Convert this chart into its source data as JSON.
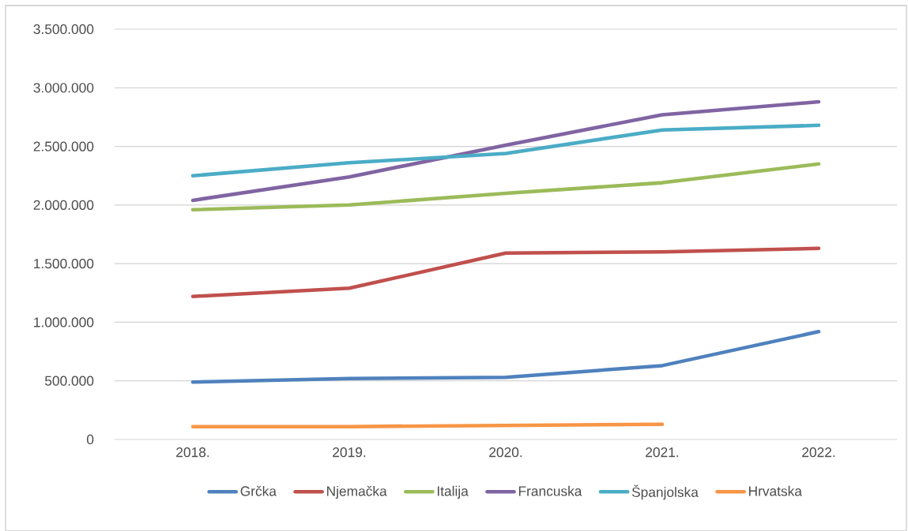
{
  "chart_data": {
    "type": "line",
    "categories": [
      "2018.",
      "2019.",
      "2020.",
      "2021.",
      "2022."
    ],
    "series": [
      {
        "name": "Grčka",
        "color": "#4f81bd",
        "values": [
          490000,
          520000,
          530000,
          630000,
          920000
        ]
      },
      {
        "name": "Njemačka",
        "color": "#c0504d",
        "values": [
          1220000,
          1290000,
          1590000,
          1600000,
          1630000
        ]
      },
      {
        "name": "Italija",
        "color": "#9bbb59",
        "values": [
          1960000,
          2000000,
          2100000,
          2190000,
          2350000
        ]
      },
      {
        "name": "Francuska",
        "color": "#8064a2",
        "values": [
          2040000,
          2240000,
          2510000,
          2770000,
          2880000
        ]
      },
      {
        "name": "Španjolska",
        "color": "#4bacc6",
        "values": [
          2250000,
          2360000,
          2440000,
          2640000,
          2680000
        ]
      },
      {
        "name": "Hrvatska",
        "color": "#f79646",
        "values": [
          110000,
          110000,
          120000,
          130000,
          null
        ]
      }
    ],
    "ylim": [
      0,
      3500000
    ],
    "yticks": [
      {
        "value": 0,
        "label": "0"
      },
      {
        "value": 500000,
        "label": "500.000"
      },
      {
        "value": 1000000,
        "label": "1.000.000"
      },
      {
        "value": 1500000,
        "label": "1.500.000"
      },
      {
        "value": 2000000,
        "label": "2.000.000"
      },
      {
        "value": 2500000,
        "label": "2.500.000"
      },
      {
        "value": 3000000,
        "label": "3.000.000"
      },
      {
        "value": 3500000,
        "label": "3.500.000"
      }
    ],
    "grid": "y",
    "legend": "bottom",
    "marker": "none",
    "line_style": "solid"
  }
}
